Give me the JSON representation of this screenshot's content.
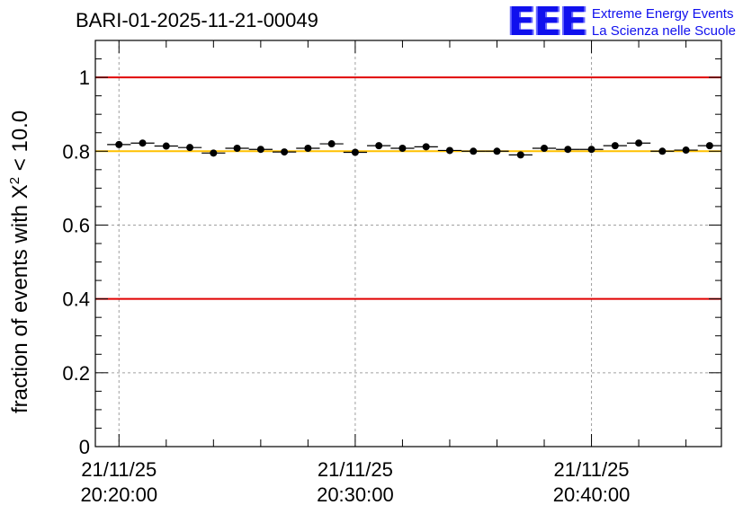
{
  "title": "BARI-01-2025-11-21-00049",
  "logo": {
    "mark": "EEE",
    "line1": "Extreme Energy Events",
    "line2": "La Scienza nelle Scuole"
  },
  "y_axis": {
    "label_prefix": "fraction of events with X",
    "label_sup": "2",
    "label_suffix": " < 10.0"
  },
  "chart_data": {
    "type": "scatter",
    "title": "BARI-01-2025-11-21-00049",
    "xlabel": "",
    "ylabel": "fraction of events with X² < 10.0",
    "ylim": [
      0,
      1.1
    ],
    "xlim_minutes": [
      "20:19:00",
      "20:45:30"
    ],
    "x_ticks": [
      {
        "date": "21/11/25",
        "time": "20:20:00"
      },
      {
        "date": "21/11/25",
        "time": "20:30:00"
      },
      {
        "date": "21/11/25",
        "time": "20:40:00"
      }
    ],
    "y_ticks": [
      "0",
      "0.2",
      "0.4",
      "0.6",
      "0.8",
      "1"
    ],
    "grid": true,
    "reference_lines": [
      {
        "y": 1.0,
        "color": "#e00000"
      },
      {
        "y": 0.4,
        "color": "#e00000"
      },
      {
        "y": 0.8,
        "color": "#ffc000"
      }
    ],
    "series": [
      {
        "marker_color": "#000000",
        "x": [
          "20:20:00",
          "20:21:00",
          "20:22:00",
          "20:23:00",
          "20:24:00",
          "20:25:00",
          "20:26:00",
          "20:27:00",
          "20:28:00",
          "20:29:00",
          "20:30:00",
          "20:31:00",
          "20:32:00",
          "20:33:00",
          "20:34:00",
          "20:35:00",
          "20:36:00",
          "20:37:00",
          "20:38:00",
          "20:39:00",
          "20:40:00",
          "20:41:00",
          "20:42:00",
          "20:43:00",
          "20:44:00",
          "20:45:00"
        ],
        "values": [
          0.818,
          0.822,
          0.814,
          0.81,
          0.795,
          0.808,
          0.805,
          0.798,
          0.808,
          0.82,
          0.797,
          0.815,
          0.808,
          0.812,
          0.802,
          0.8,
          0.8,
          0.79,
          0.808,
          0.805,
          0.805,
          0.815,
          0.822,
          0.8,
          0.803,
          0.815
        ]
      }
    ]
  },
  "colors": {
    "frame": "#000000",
    "grid": "#a0a0a0",
    "limit_line": "#e00000",
    "reference_line": "#ffc000",
    "logo": "#1010ee"
  }
}
